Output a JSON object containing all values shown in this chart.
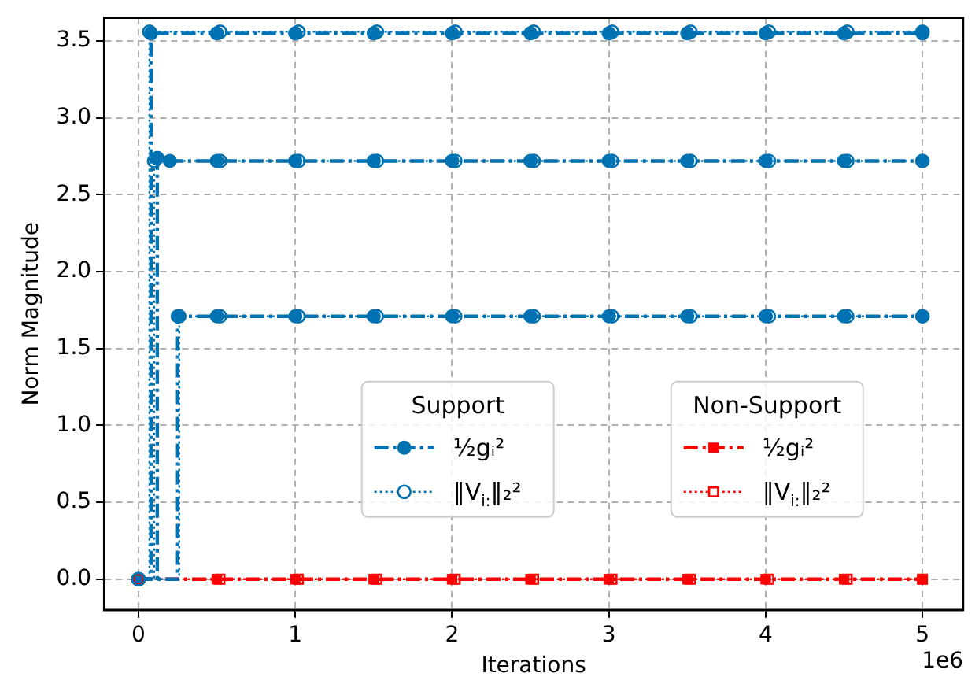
{
  "chart_data": {
    "type": "step",
    "xlabel": "Iterations",
    "ylabel": "Norm Magnitude",
    "annotations": [
      "Support",
      "Non-Support",
      "1e6"
    ],
    "x": [
      0,
      0.08,
      0.5,
      1,
      1.5,
      2,
      2.5,
      3,
      3.5,
      4,
      4.5,
      5
    ],
    "series": [
      {
        "name": "½gᵢ²",
        "color": "#0072b2",
        "marker": "circle",
        "line_style": "dashed",
        "values": [
          0,
          3.55,
          3.55,
          3.55,
          3.55,
          3.55,
          3.55,
          3.55,
          3.55,
          3.55,
          3.55,
          3.55
        ]
      },
      {
        "color": "#0072b2",
        "marker": "circle",
        "line_style": "dashed",
        "x": [
          0,
          0.12,
          0.2,
          0.5,
          1,
          1.5,
          2,
          2.5,
          3,
          3.5,
          4,
          4.5,
          5
        ],
        "values": [
          0,
          2.74,
          2.72,
          2.72,
          2.72,
          2.72,
          2.72,
          2.72,
          2.72,
          2.72,
          2.72,
          2.72,
          2.72
        ]
      },
      {
        "color": "#0072b2",
        "marker": "circle",
        "line_style": "dashed",
        "x": [
          0,
          0.25,
          0.5,
          1,
          1.5,
          2,
          2.5,
          3,
          3.5,
          4,
          4.5,
          5
        ],
        "values": [
          0,
          1.71,
          1.71,
          1.71,
          1.71,
          1.71,
          1.71,
          1.71,
          1.71,
          1.71,
          1.71,
          1.71
        ]
      },
      {
        "name": "‖V$_{i:}$‖₂²",
        "color": "#0072b2",
        "marker": "circle",
        "line_style": "dotted",
        "x": [
          0,
          0.07,
          0.52,
          1.02,
          1.52,
          2.02,
          2.52,
          3.02,
          3.52,
          4.02,
          4.52,
          5
        ],
        "values": [
          0,
          3.56,
          3.56,
          3.56,
          3.56,
          3.56,
          3.56,
          3.56,
          3.56,
          3.56,
          3.56,
          3.56
        ]
      },
      {
        "color": "#0072b2",
        "marker": "circle",
        "line_style": "dotted",
        "x": [
          0,
          0.1,
          0.52,
          1.02,
          1.52,
          2.02,
          2.52,
          3.02,
          3.52,
          4.02,
          4.52,
          5
        ],
        "values": [
          0,
          2.72,
          2.72,
          2.72,
          2.72,
          2.72,
          2.72,
          2.72,
          2.72,
          2.72,
          2.72,
          2.72
        ]
      },
      {
        "color": "#0072b2",
        "marker": "circle",
        "line_style": "dotted",
        "x": [
          0,
          0.26,
          0.52,
          1.02,
          1.52,
          2.02,
          2.52,
          3.02,
          3.52,
          4.02,
          4.52,
          5
        ],
        "values": [
          0,
          1.71,
          1.71,
          1.71,
          1.71,
          1.71,
          1.71,
          1.71,
          1.71,
          1.71,
          1.71,
          1.71
        ]
      },
      {
        "name": "½gᵢ²",
        "color": "#ff0000",
        "marker": "square",
        "line_style": "dashed",
        "x": [
          0,
          0.5,
          1,
          1.5,
          2,
          2.5,
          3,
          3.5,
          4,
          4.5,
          5
        ],
        "values": [
          0,
          0,
          0,
          0,
          0,
          0,
          0,
          0,
          0,
          0,
          0
        ]
      },
      {
        "name": "‖V$_{i:}$‖₂²",
        "color": "#ff0000",
        "marker": "square",
        "line_style": "dotted",
        "x": [
          0,
          0.52,
          1.02,
          1.52,
          2.02,
          2.52,
          3.02,
          3.52,
          4.02,
          4.52,
          5
        ],
        "values": [
          0,
          0,
          0,
          0,
          0,
          0,
          0,
          0,
          0,
          0,
          0
        ]
      }
    ],
    "xlim": [
      -0.22,
      5.26
    ],
    "xticks": [
      0,
      1,
      2,
      3,
      4,
      5
    ],
    "ylim": [
      -0.2,
      3.65
    ],
    "yticks": [
      {
        "value": 0,
        "label": "0.0"
      },
      {
        "value": 0.5,
        "label": "0.5"
      },
      {
        "value": 1,
        "label": "1.0"
      },
      {
        "value": 1.5,
        "label": "1.5"
      },
      {
        "value": 2,
        "label": "2.0"
      },
      {
        "value": 2.5,
        "label": "2.5"
      },
      {
        "value": 3,
        "label": "3.0"
      },
      {
        "value": 3.5,
        "label": "3.5"
      }
    ],
    "grid": true,
    "legend": "bottom right"
  }
}
